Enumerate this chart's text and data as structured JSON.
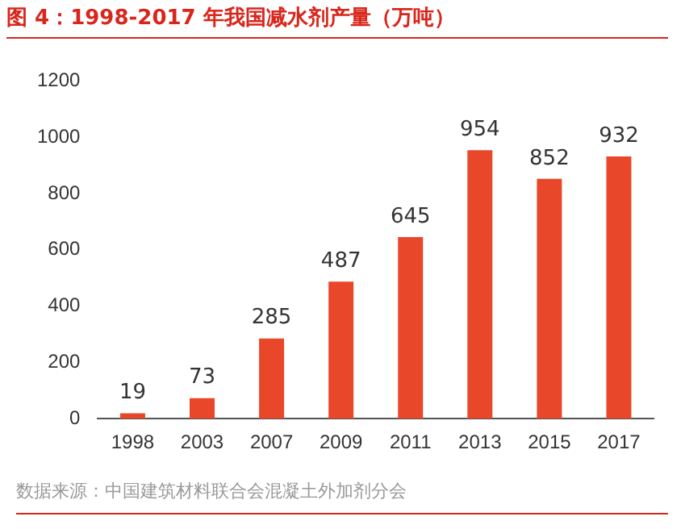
{
  "chart_data": {
    "type": "bar",
    "title": "图 4：1998-2017 年我国减水剂产量（万吨）",
    "categories": [
      "1998",
      "2003",
      "2007",
      "2009",
      "2011",
      "2013",
      "2015",
      "2017"
    ],
    "values": [
      19,
      73,
      285,
      487,
      645,
      954,
      852,
      932
    ],
    "color": "#e8472a",
    "ylim": [
      0,
      1200
    ],
    "yticks": [
      0,
      200,
      400,
      600,
      800,
      1000,
      1200
    ],
    "grid": false,
    "data_labels": true,
    "annotations": [
      "数据来源：中国建筑材料联合会混凝土外加剂分会"
    ]
  }
}
